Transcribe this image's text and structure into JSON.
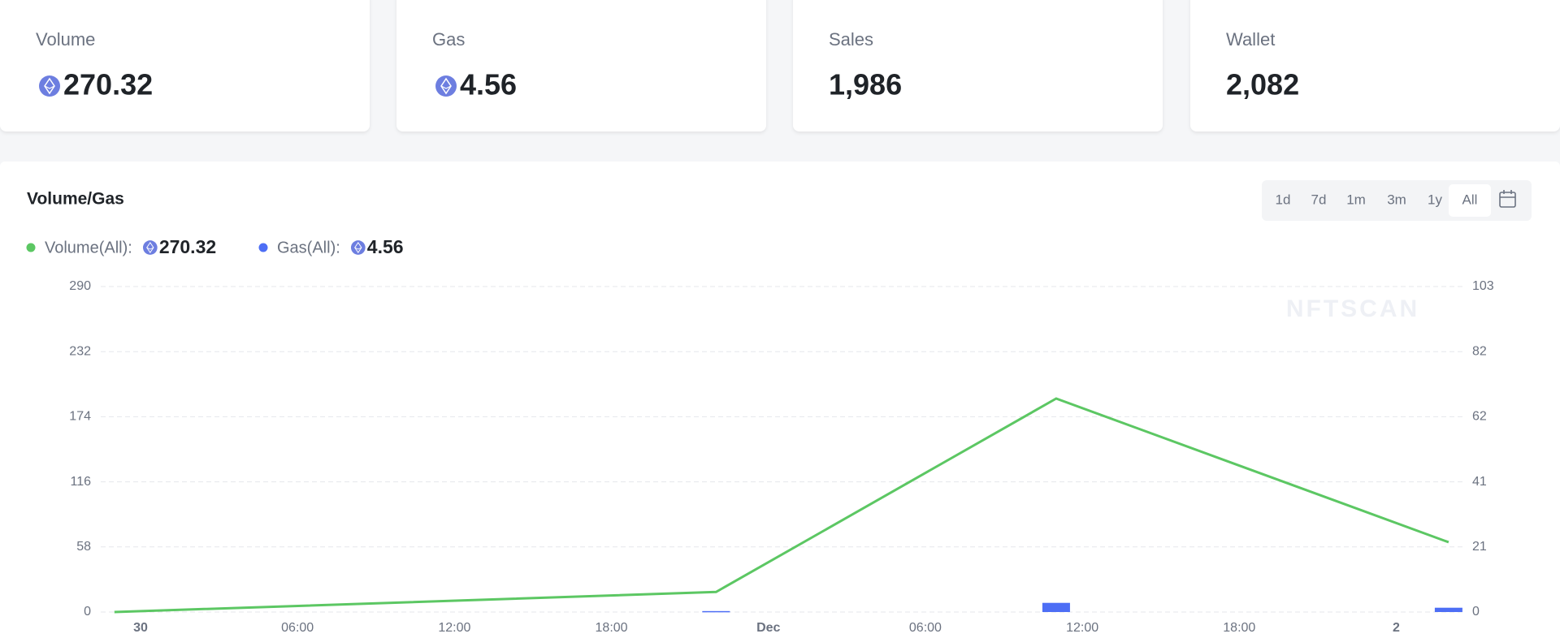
{
  "cards": [
    {
      "label": "Volume",
      "value": "270.32",
      "eth": true
    },
    {
      "label": "Gas",
      "value": "4.56",
      "eth": true
    },
    {
      "label": "Sales",
      "value": "1,986",
      "eth": false
    },
    {
      "label": "Wallet",
      "value": "2,082",
      "eth": false
    }
  ],
  "ranges": [
    "1d",
    "7d",
    "1m",
    "3m",
    "1y",
    "All"
  ],
  "active_range": "All",
  "legend": [
    {
      "label": "Volume(All):",
      "value": "270.32"
    },
    {
      "label": "Gas(All):",
      "value": "4.56"
    }
  ],
  "watermark": "NFTSCAN",
  "chart_data": {
    "type": "line-bar",
    "title": "Volume/Gas",
    "x": [
      -1,
      22,
      35,
      50
    ],
    "xlim": [
      -1.5,
      50.5
    ],
    "xticks": [
      {
        "value": 0,
        "label": "30"
      },
      {
        "value": 6,
        "label": "06:00"
      },
      {
        "value": 12,
        "label": "12:00"
      },
      {
        "value": 18,
        "label": "18:00"
      },
      {
        "value": 24,
        "label": "Dec"
      },
      {
        "value": 30,
        "label": "06:00"
      },
      {
        "value": 36,
        "label": "12:00"
      },
      {
        "value": 42,
        "label": "18:00"
      },
      {
        "value": 48,
        "label": "2"
      }
    ],
    "ylim": [
      0,
      290
    ],
    "yticks": [
      0,
      58,
      116,
      174,
      232,
      290
    ],
    "y2lim": [
      0,
      103
    ],
    "y2ticks": [
      0,
      {
        "value": 20.6,
        "label": "21"
      },
      {
        "value": 41.2,
        "label": "41"
      },
      {
        "value": 61.8,
        "label": "62"
      },
      {
        "value": 82.4,
        "label": "82"
      },
      103
    ],
    "grid": true,
    "series": [
      {
        "name": "Volume",
        "type": "line",
        "color": "#5cc763",
        "values": [
          0,
          17.9,
          190.2,
          62.22
        ]
      },
      {
        "name": "Gas",
        "type": "bar",
        "axis": "y2",
        "color": "#4d6ef5",
        "values": [
          null,
          0.3,
          2.9,
          1.36
        ]
      }
    ]
  }
}
